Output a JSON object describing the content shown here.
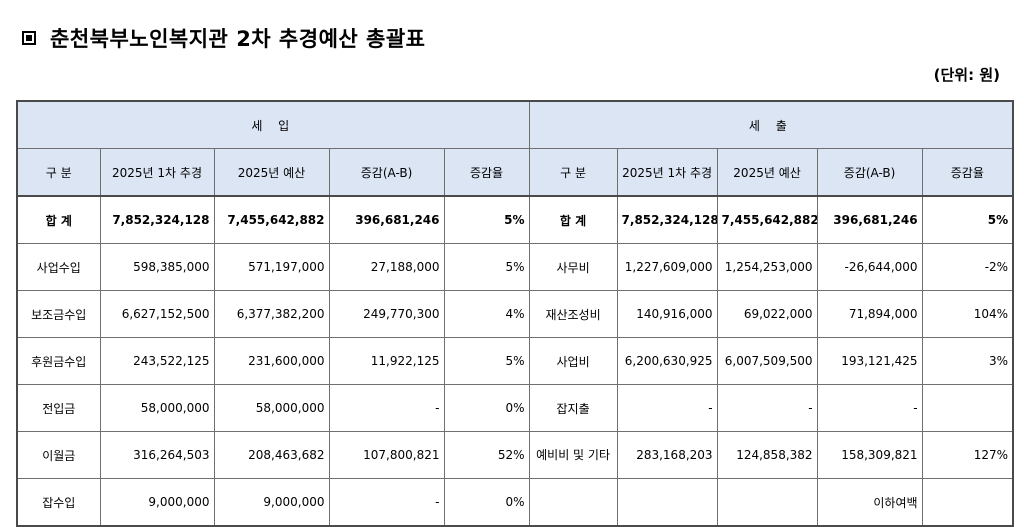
{
  "title": "춘천북부노인복지관 2차 추경예산 총괄표",
  "unit": "(단위: 원)",
  "sections": {
    "income": "세  입",
    "expense": "세  출"
  },
  "columns": [
    "구  분",
    "2025년 1차 추경",
    "2025년 예산",
    "증감(A-B)",
    "증감율"
  ],
  "income_rows": [
    {
      "name": "합  계",
      "a": "7,852,324,128",
      "b": "7,455,642,882",
      "diff": "396,681,246",
      "rate": "5%"
    },
    {
      "name": "사업수입",
      "a": "598,385,000",
      "b": "571,197,000",
      "diff": "27,188,000",
      "rate": "5%"
    },
    {
      "name": "보조금수입",
      "a": "6,627,152,500",
      "b": "6,377,382,200",
      "diff": "249,770,300",
      "rate": "4%"
    },
    {
      "name": "후원금수입",
      "a": "243,522,125",
      "b": "231,600,000",
      "diff": "11,922,125",
      "rate": "5%"
    },
    {
      "name": "전입금",
      "a": "58,000,000",
      "b": "58,000,000",
      "diff": "-",
      "rate": "0%"
    },
    {
      "name": "이월금",
      "a": "316,264,503",
      "b": "208,463,682",
      "diff": "107,800,821",
      "rate": "52%"
    },
    {
      "name": "잡수입",
      "a": "9,000,000",
      "b": "9,000,000",
      "diff": "-",
      "rate": "0%"
    }
  ],
  "expense_rows": [
    {
      "name": "합  계",
      "a": "7,852,324,128",
      "b": "7,455,642,882",
      "diff": "396,681,246",
      "rate": "5%"
    },
    {
      "name": "사무비",
      "a": "1,227,609,000",
      "b": "1,254,253,000",
      "diff": "-26,644,000",
      "rate": "-2%"
    },
    {
      "name": "재산조성비",
      "a": "140,916,000",
      "b": "69,022,000",
      "diff": "71,894,000",
      "rate": "104%"
    },
    {
      "name": "사업비",
      "a": "6,200,630,925",
      "b": "6,007,509,500",
      "diff": "193,121,425",
      "rate": "3%"
    },
    {
      "name": "잡지출",
      "a": "-",
      "b": "-",
      "diff": "-",
      "rate": ""
    },
    {
      "name": "예비비 및 기타",
      "a": "283,168,203",
      "b": "124,858,382",
      "diff": "158,309,821",
      "rate": "127%"
    },
    {
      "name": "",
      "a": "",
      "b": "",
      "diff": "이하여백",
      "rate": ""
    }
  ]
}
